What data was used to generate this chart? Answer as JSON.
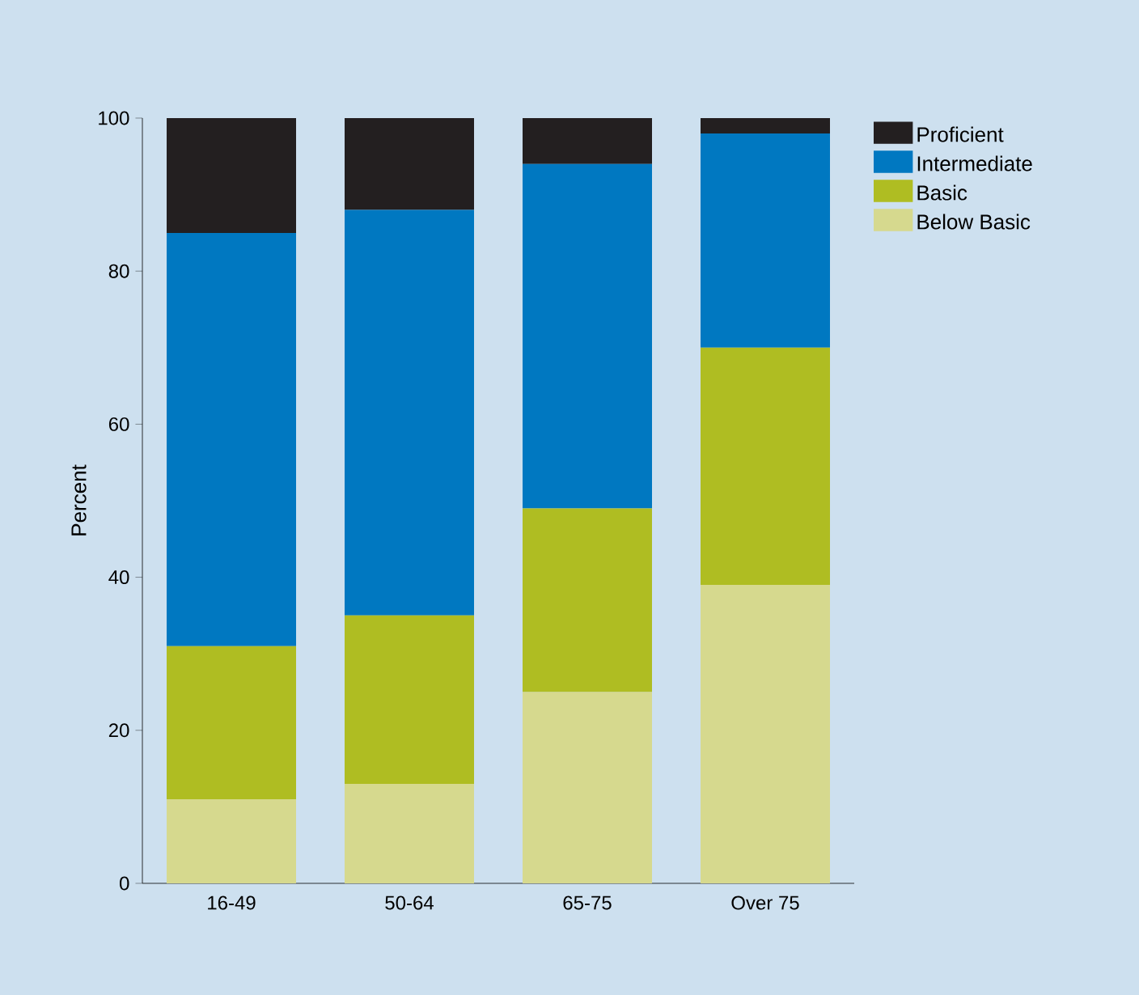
{
  "chart_data": {
    "type": "bar",
    "stacked": true,
    "ylabel": "Percent",
    "categories": [
      "16-49",
      "50-64",
      "65-75",
      "Over 75"
    ],
    "series": [
      {
        "name": "Below Basic",
        "color": "#d6d98e",
        "values": [
          11,
          13,
          25,
          39
        ]
      },
      {
        "name": "Basic",
        "color": "#afbd22",
        "values": [
          20,
          22,
          24,
          31
        ]
      },
      {
        "name": "Intermediate",
        "color": "#0078c1",
        "values": [
          54,
          53,
          45,
          28
        ]
      },
      {
        "name": "Proficient",
        "color": "#231f20",
        "values": [
          15,
          12,
          6,
          2
        ]
      }
    ],
    "ylim": [
      0,
      100
    ],
    "yticks": [
      0,
      20,
      40,
      60,
      80,
      100
    ],
    "legend": "top right"
  }
}
